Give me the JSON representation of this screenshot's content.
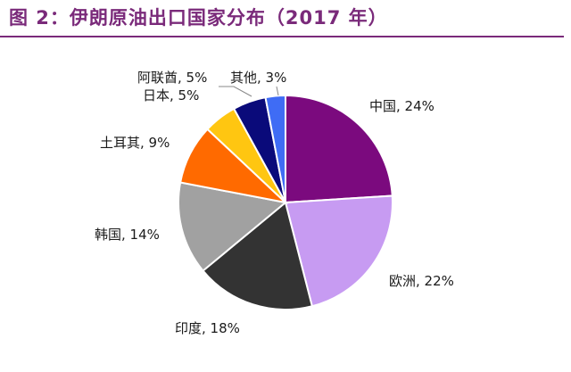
{
  "figure": {
    "title": "图 2：伊朗原油出口国家分布（2017 年）"
  },
  "chart_data": {
    "type": "pie",
    "title": "图 2：伊朗原油出口国家分布（2017 年）",
    "slices": [
      {
        "label": "中国, 24%",
        "category": "中国",
        "value": 24,
        "color": "#7b0a7e"
      },
      {
        "label": "欧洲, 22%",
        "category": "欧洲",
        "value": 22,
        "color": "#c79bf2"
      },
      {
        "label": "印度, 18%",
        "category": "印度",
        "value": 18,
        "color": "#333333"
      },
      {
        "label": "韩国, 14%",
        "category": "韩国",
        "value": 14,
        "color": "#a1a1a1"
      },
      {
        "label": "土耳其, 9%",
        "category": "土耳其",
        "value": 9,
        "color": "#ff6a00"
      },
      {
        "label": "日本, 5%",
        "category": "日本",
        "value": 5,
        "color": "#ffc611"
      },
      {
        "label": "阿联酋, 5%",
        "category": "阿联酋",
        "value": 5,
        "color": "#0a0a7a"
      },
      {
        "label": "其他, 3%",
        "category": "其他",
        "value": 3,
        "color": "#3f6cf5"
      }
    ],
    "start_angle": "12 o'clock",
    "direction": "clockwise",
    "legend": "none (data labels beside slices)"
  }
}
